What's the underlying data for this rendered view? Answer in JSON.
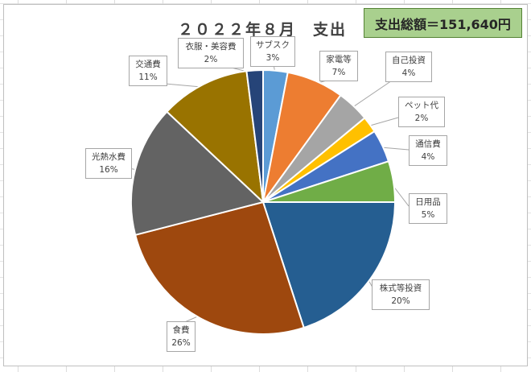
{
  "header": {
    "title": "２０２２年８月　支出",
    "total": "支出総額＝151,640円"
  },
  "colors": {
    "total_box_bg": "#a9d08e",
    "label_border": "#a6a6a6"
  },
  "chart_data": {
    "type": "pie",
    "title": "２０２２年８月　支出",
    "start_angle_deg": 0,
    "direction": "clockwise",
    "legend": "none",
    "slices": [
      {
        "name": "サブスク",
        "percent": 3,
        "label": "3%",
        "color": "#5b9bd5"
      },
      {
        "name": "家電等",
        "percent": 7,
        "label": "7%",
        "color": "#ed7d31"
      },
      {
        "name": "自己投資",
        "percent": 4,
        "label": "4%",
        "color": "#a5a5a5"
      },
      {
        "name": "ペット代",
        "percent": 2,
        "label": "2%",
        "color": "#ffc000"
      },
      {
        "name": "通信費",
        "percent": 4,
        "label": "4%",
        "color": "#4472c4"
      },
      {
        "name": "日用品",
        "percent": 5,
        "label": "5%",
        "color": "#70ad47"
      },
      {
        "name": "株式等投資",
        "percent": 20,
        "label": "20%",
        "color": "#255e91"
      },
      {
        "name": "食費",
        "percent": 26,
        "label": "26%",
        "color": "#9e480e"
      },
      {
        "name": "光熱水費",
        "percent": 16,
        "label": "16%",
        "color": "#636363"
      },
      {
        "name": "交通費",
        "percent": 11,
        "label": "11%",
        "color": "#997300"
      },
      {
        "name": "衣服・美容費",
        "percent": 2,
        "label": "2%",
        "color": "#264478"
      }
    ]
  }
}
